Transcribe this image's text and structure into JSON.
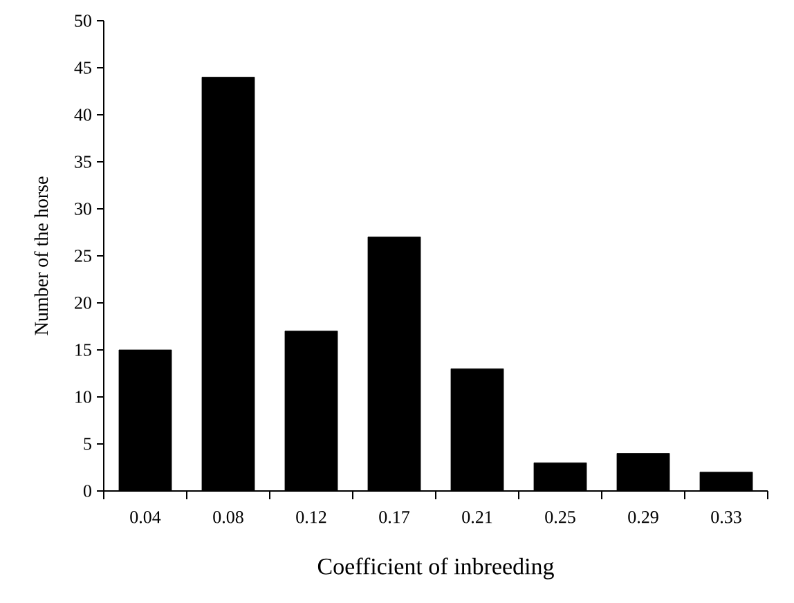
{
  "chart_data": {
    "type": "bar",
    "xlabel": "Coefficient of inbreeding",
    "ylabel": "Number of the horse",
    "categories": [
      "0.04",
      "0.08",
      "0.12",
      "0.17",
      "0.21",
      "0.25",
      "0.29",
      "0.33"
    ],
    "values": [
      15,
      44,
      17,
      27,
      13,
      3,
      4,
      2
    ],
    "color": "#000000",
    "ylim": [
      0,
      50
    ],
    "yticks": [
      0,
      5,
      10,
      15,
      20,
      25,
      30,
      35,
      40,
      45,
      50
    ],
    "grid": false
  }
}
